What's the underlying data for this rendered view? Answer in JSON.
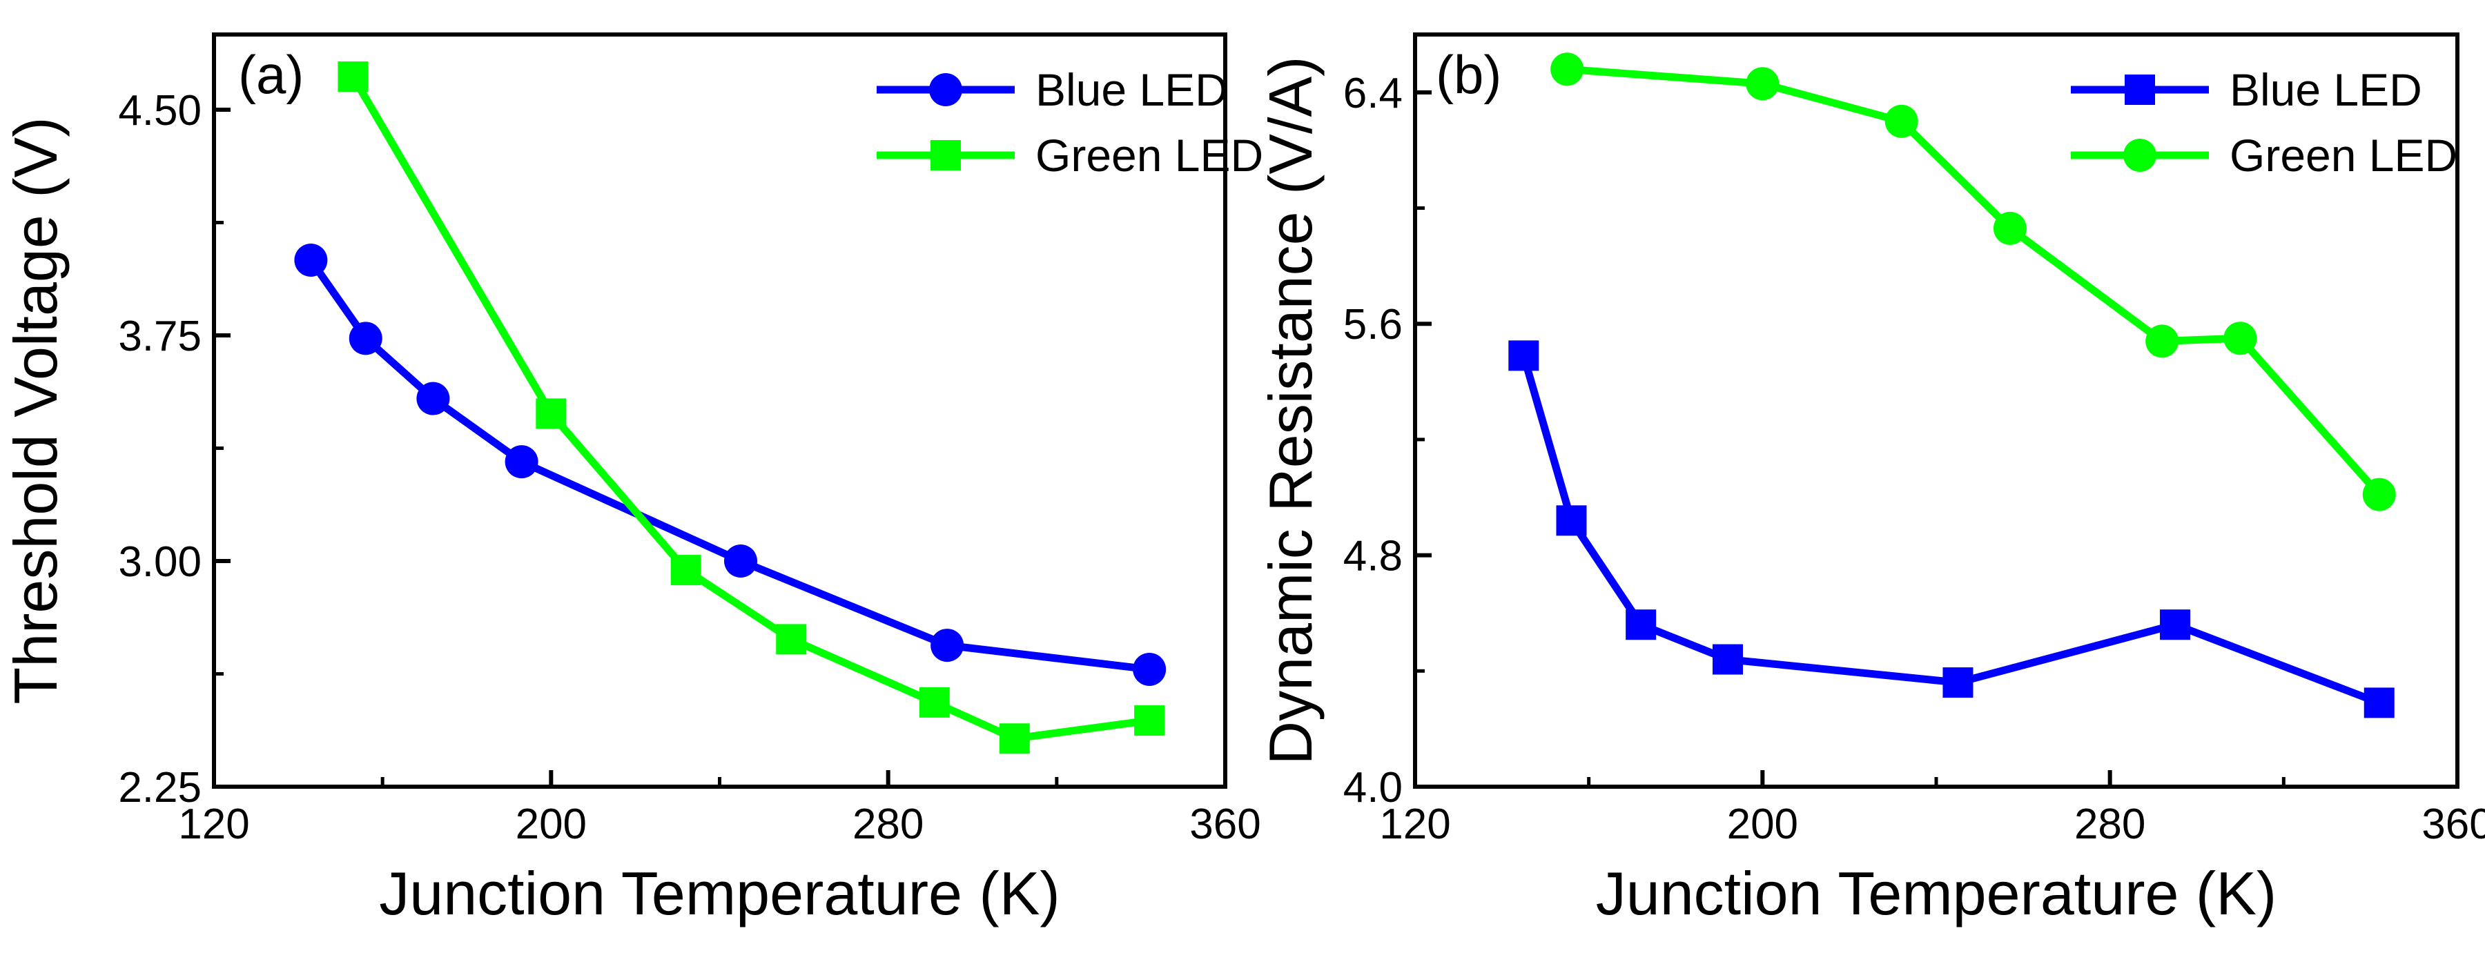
{
  "chart_data": [
    {
      "type": "line",
      "panel_label": "(a)",
      "title": "",
      "xlabel": "Junction Temperature (K)",
      "ylabel": "Threshold Voltage (V)",
      "xlim": [
        120,
        360
      ],
      "ylim": [
        2.25,
        4.75
      ],
      "xticks": [
        "120",
        "200",
        "280",
        "360"
      ],
      "yticks": [
        "2.25",
        "3.00",
        "3.75",
        "4.50"
      ],
      "legend_position": "top-right",
      "series": [
        {
          "name": "Blue LED",
          "color": "#0000ff",
          "marker": "circle",
          "x": [
            143,
            156,
            172,
            193,
            245,
            294,
            342
          ],
          "y": [
            4.0,
            3.74,
            3.54,
            3.33,
            3.0,
            2.72,
            2.64
          ]
        },
        {
          "name": "Green LED",
          "color": "#00ff00",
          "marker": "square",
          "x": [
            153,
            200,
            232,
            257,
            291,
            310,
            342
          ],
          "y": [
            4.61,
            3.49,
            2.97,
            2.74,
            2.53,
            2.41,
            2.47
          ]
        }
      ]
    },
    {
      "type": "line",
      "panel_label": "(b)",
      "title": "",
      "xlabel": "Junction Temperature (K)",
      "ylabel": "Dynamic Resistance (V/A)",
      "xlim": [
        120,
        360
      ],
      "ylim": [
        4.0,
        6.6
      ],
      "xticks": [
        "120",
        "200",
        "280",
        "360"
      ],
      "yticks": [
        "4.0",
        "4.8",
        "5.6",
        "6.4"
      ],
      "legend_position": "top-right",
      "series": [
        {
          "name": "Blue LED",
          "color": "#0000ff",
          "marker": "square",
          "x": [
            145,
            156,
            172,
            192,
            245,
            295,
            342
          ],
          "y": [
            5.49,
            4.92,
            4.56,
            4.44,
            4.36,
            4.56,
            4.29
          ]
        },
        {
          "name": "Green LED",
          "color": "#00ff00",
          "marker": "circle",
          "x": [
            155,
            200,
            232,
            257,
            292,
            310,
            342
          ],
          "y": [
            6.48,
            6.43,
            6.3,
            5.93,
            5.54,
            5.55,
            5.01
          ]
        }
      ]
    }
  ]
}
